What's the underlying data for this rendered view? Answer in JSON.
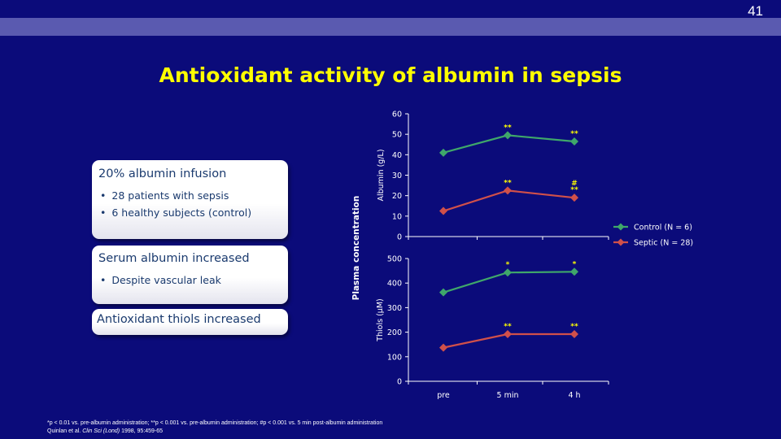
{
  "slide": {
    "page_number": "41",
    "title": "Antioxidant activity of albumin in sepsis"
  },
  "boxes": [
    {
      "heading": "20% albumin infusion",
      "bullets": [
        "28 patients with sepsis",
        "6 healthy subjects (control)"
      ]
    },
    {
      "heading": "Serum albumin increased",
      "bullets": [
        "Despite vascular leak"
      ]
    },
    {
      "heading": "Antioxidant thiols increased",
      "bullets": []
    }
  ],
  "footnote": {
    "line1": "*p < 0.01 vs. pre-albumin administration; **p < 0.001 vs. pre-albumin administration; #p < 0.001 vs. 5 min post-albumin administration",
    "ref_authors": "Quinlan et al.",
    "ref_journal": "Clin Sci (Lond)",
    "ref_details": "1998, 95:459-65"
  },
  "colors": {
    "background": "#0b0b7a",
    "band": "#5a5ab0",
    "title": "#ffff00",
    "control": "#3fa76a",
    "septic": "#d0504a",
    "axis": "#ffffff",
    "annotation": "#ffff00"
  },
  "chart_data": {
    "type": "line",
    "shared_ylabel": "Plasma concentration",
    "categories": [
      "pre",
      "5 min",
      "4 h"
    ],
    "legend": {
      "placement": "right",
      "entries": [
        "Control (N = 6)",
        "Septic (N = 28)"
      ]
    },
    "panels": [
      {
        "ylabel": "Albumin (g/L)",
        "ylim": [
          0,
          60
        ],
        "yticks": [
          0,
          10,
          20,
          30,
          40,
          50,
          60
        ],
        "grid": false,
        "series": [
          {
            "name": "Control (N = 6)",
            "values": [
              41,
              49.5,
              46.5
            ]
          },
          {
            "name": "Septic (N = 28)",
            "values": [
              12.5,
              22.5,
              19
            ]
          }
        ],
        "annotations": [
          {
            "series": 0,
            "index": 1,
            "labels": [
              "**"
            ]
          },
          {
            "series": 0,
            "index": 2,
            "labels": [
              "**"
            ]
          },
          {
            "series": 1,
            "index": 1,
            "labels": [
              "**"
            ]
          },
          {
            "series": 1,
            "index": 2,
            "labels": [
              "#",
              "**"
            ]
          }
        ]
      },
      {
        "ylabel": "Thiols (µM)",
        "ylim": [
          0,
          500
        ],
        "yticks": [
          0,
          100,
          200,
          300,
          400,
          500
        ],
        "grid": false,
        "series": [
          {
            "name": "Control (N = 6)",
            "values": [
              362,
              443,
              446
            ]
          },
          {
            "name": "Septic (N = 28)",
            "values": [
              137,
              192,
              192
            ]
          }
        ],
        "annotations": [
          {
            "series": 0,
            "index": 1,
            "labels": [
              "*"
            ]
          },
          {
            "series": 0,
            "index": 2,
            "labels": [
              "*"
            ]
          },
          {
            "series": 1,
            "index": 1,
            "labels": [
              "**"
            ]
          },
          {
            "series": 1,
            "index": 2,
            "labels": [
              "**"
            ]
          }
        ]
      }
    ]
  }
}
